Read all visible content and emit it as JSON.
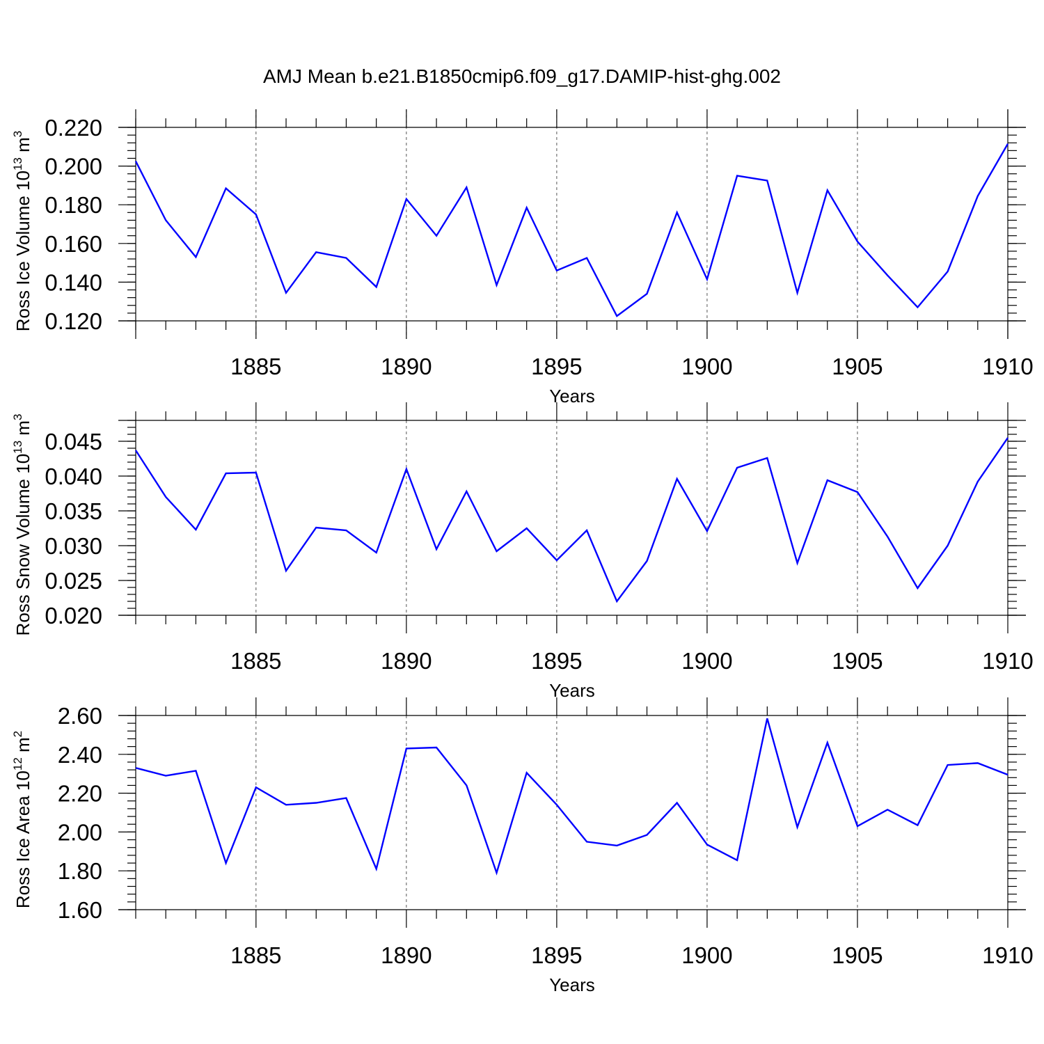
{
  "title": "AMJ Mean b.e21.B1850cmip6.f09_g17.DAMIP-hist-ghg.002",
  "colors": {
    "line": "#0000ff",
    "axis": "#000000",
    "grid": "#555555"
  },
  "chart_data": [
    {
      "type": "line",
      "ylabel": "Ross Ice Volume 10",
      "ylabel_exp": "13",
      "ylabel_unit": " m",
      "ylabel_unit_exp": "3",
      "xlabel": "Years",
      "xlim": [
        1881,
        1910
      ],
      "ylim": [
        0.12,
        0.22
      ],
      "yticks": [
        0.12,
        0.14,
        0.16,
        0.18,
        0.2,
        0.22
      ],
      "ytick_labels": [
        "0.120",
        "0.140",
        "0.160",
        "0.180",
        "0.200",
        "0.220"
      ],
      "xticks": [
        1885,
        1890,
        1895,
        1900,
        1905,
        1910
      ],
      "xtick_labels": [
        "1885",
        "1890",
        "1895",
        "1900",
        "1905",
        "1910"
      ],
      "grid": "vertical dashed at major x ticks",
      "x": [
        1881,
        1882,
        1883,
        1884,
        1885,
        1886,
        1887,
        1888,
        1889,
        1890,
        1891,
        1892,
        1893,
        1894,
        1895,
        1896,
        1897,
        1898,
        1899,
        1900,
        1901,
        1902,
        1903,
        1904,
        1905,
        1906,
        1907,
        1908,
        1909,
        1910
      ],
      "values": [
        0.2025,
        0.172,
        0.153,
        0.1885,
        0.175,
        0.1345,
        0.1555,
        0.1525,
        0.1375,
        0.183,
        0.164,
        0.189,
        0.1385,
        0.1785,
        0.146,
        0.1525,
        0.1225,
        0.134,
        0.176,
        0.1415,
        0.195,
        0.1925,
        0.1345,
        0.1875,
        0.161,
        0.1435,
        0.127,
        0.1455,
        0.1845,
        0.2115
      ]
    },
    {
      "type": "line",
      "ylabel": "Ross Snow Volume 10",
      "ylabel_exp": "13",
      "ylabel_unit": " m",
      "ylabel_unit_exp": "3",
      "xlabel": "Years",
      "xlim": [
        1881,
        1910
      ],
      "ylim": [
        0.02,
        0.048
      ],
      "yticks": [
        0.02,
        0.025,
        0.03,
        0.035,
        0.04,
        0.045
      ],
      "ytick_labels": [
        "0.020",
        "0.025",
        "0.030",
        "0.035",
        "0.040",
        "0.045"
      ],
      "xticks": [
        1885,
        1890,
        1895,
        1900,
        1905,
        1910
      ],
      "xtick_labels": [
        "1885",
        "1890",
        "1895",
        "1900",
        "1905",
        "1910"
      ],
      "grid": "vertical dashed at major x ticks",
      "x": [
        1881,
        1882,
        1883,
        1884,
        1885,
        1886,
        1887,
        1888,
        1889,
        1890,
        1891,
        1892,
        1893,
        1894,
        1895,
        1896,
        1897,
        1898,
        1899,
        1900,
        1901,
        1902,
        1903,
        1904,
        1905,
        1906,
        1907,
        1908,
        1909,
        1910
      ],
      "values": [
        0.0437,
        0.037,
        0.0323,
        0.0404,
        0.0405,
        0.0264,
        0.0326,
        0.0322,
        0.029,
        0.041,
        0.0295,
        0.0378,
        0.0292,
        0.0325,
        0.0279,
        0.0322,
        0.022,
        0.0278,
        0.0396,
        0.0321,
        0.0412,
        0.0426,
        0.0275,
        0.0394,
        0.0377,
        0.0313,
        0.0239,
        0.03,
        0.0392,
        0.0455
      ]
    },
    {
      "type": "line",
      "ylabel": "Ross Ice Area 10",
      "ylabel_exp": "12",
      "ylabel_unit": " m",
      "ylabel_unit_exp": "2",
      "xlabel": "Years",
      "xlim": [
        1881,
        1910
      ],
      "ylim": [
        1.6,
        2.6
      ],
      "yticks": [
        1.6,
        1.8,
        2.0,
        2.2,
        2.4,
        2.6
      ],
      "ytick_labels": [
        "1.60",
        "1.80",
        "2.00",
        "2.20",
        "2.40",
        "2.60"
      ],
      "xticks": [
        1885,
        1890,
        1895,
        1900,
        1905,
        1910
      ],
      "xtick_labels": [
        "1885",
        "1890",
        "1895",
        "1900",
        "1905",
        "1910"
      ],
      "grid": "vertical dashed at major x ticks",
      "x": [
        1881,
        1882,
        1883,
        1884,
        1885,
        1886,
        1887,
        1888,
        1889,
        1890,
        1891,
        1892,
        1893,
        1894,
        1895,
        1896,
        1897,
        1898,
        1899,
        1900,
        1901,
        1902,
        1903,
        1904,
        1905,
        1906,
        1907,
        1908,
        1909,
        1910
      ],
      "values": [
        2.33,
        2.29,
        2.315,
        1.84,
        2.23,
        2.14,
        2.15,
        2.175,
        1.81,
        2.43,
        2.435,
        2.24,
        1.79,
        2.305,
        2.14,
        1.95,
        1.93,
        1.985,
        2.15,
        1.935,
        1.855,
        2.585,
        2.025,
        2.46,
        2.03,
        2.115,
        2.035,
        2.345,
        2.355,
        2.295
      ]
    }
  ]
}
